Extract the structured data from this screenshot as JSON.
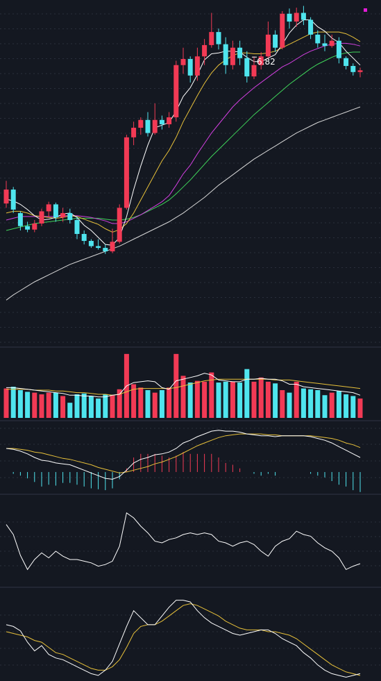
{
  "chart_data": [
    {
      "type": "candlestick",
      "panel": "price",
      "annotations": [
        {
          "text": "6.82",
          "at_index": 35
        }
      ],
      "colors": {
        "up": "#f23a55",
        "down": "#4fe5ee",
        "ma5": "#ffffff",
        "ma10": "#e8c13a",
        "ma20": "#d23fe0",
        "ma30": "#3fd45a",
        "ma60": "#d8d8d8",
        "marker": "#e21cd6"
      },
      "ylim": [
        3.0,
        6.9
      ],
      "candles": [
        [
          4.61,
          4.77,
          4.56,
          4.87
        ],
        [
          4.77,
          4.54,
          4.5,
          4.8
        ],
        [
          4.5,
          4.35,
          4.3,
          4.52
        ],
        [
          4.35,
          4.31,
          4.28,
          4.4
        ],
        [
          4.31,
          4.38,
          4.28,
          4.42
        ],
        [
          4.38,
          4.52,
          4.35,
          4.55
        ],
        [
          4.52,
          4.6,
          4.45,
          4.63
        ],
        [
          4.6,
          4.45,
          4.4,
          4.62
        ],
        [
          4.45,
          4.5,
          4.4,
          4.56
        ],
        [
          4.5,
          4.42,
          4.38,
          4.55
        ],
        [
          4.42,
          4.26,
          4.2,
          4.46
        ],
        [
          4.26,
          4.18,
          4.14,
          4.3
        ],
        [
          4.18,
          4.12,
          4.1,
          4.2
        ],
        [
          4.12,
          4.1,
          4.08,
          4.2
        ],
        [
          4.1,
          4.06,
          4.03,
          4.14
        ],
        [
          4.06,
          4.17,
          4.04,
          4.32
        ],
        [
          4.17,
          4.56,
          4.15,
          4.6
        ],
        [
          4.56,
          5.37,
          4.54,
          5.4
        ],
        [
          5.37,
          5.48,
          5.28,
          5.55
        ],
        [
          5.48,
          5.57,
          5.4,
          5.6
        ],
        [
          5.57,
          5.42,
          5.38,
          5.66
        ],
        [
          5.42,
          5.57,
          5.4,
          5.76
        ],
        [
          5.57,
          5.52,
          5.46,
          5.62
        ],
        [
          5.52,
          5.6,
          5.48,
          5.66
        ],
        [
          5.6,
          6.2,
          5.55,
          6.25
        ],
        [
          6.2,
          6.27,
          6.1,
          6.4
        ],
        [
          6.27,
          6.08,
          6.0,
          6.3
        ],
        [
          6.08,
          6.3,
          6.02,
          6.4
        ],
        [
          6.3,
          6.43,
          6.2,
          6.5
        ],
        [
          6.43,
          6.58,
          6.4,
          6.8
        ],
        [
          6.58,
          6.44,
          6.38,
          6.62
        ],
        [
          6.44,
          6.2,
          6.1,
          6.52
        ],
        [
          6.2,
          6.4,
          6.15,
          6.48
        ],
        [
          6.4,
          6.28,
          6.2,
          6.48
        ],
        [
          6.28,
          6.07,
          6.0,
          6.36
        ],
        [
          6.07,
          6.2,
          6.04,
          6.3
        ],
        [
          6.2,
          6.3,
          6.15,
          6.35
        ],
        [
          6.3,
          6.55,
          6.28,
          6.7
        ],
        [
          6.55,
          6.4,
          6.35,
          6.6
        ],
        [
          6.4,
          6.79,
          6.38,
          6.82
        ],
        [
          6.79,
          6.7,
          6.62,
          6.85
        ],
        [
          6.7,
          6.8,
          6.64,
          6.86
        ],
        [
          6.8,
          6.72,
          6.66,
          6.88
        ],
        [
          6.72,
          6.55,
          6.5,
          6.75
        ],
        [
          6.55,
          6.45,
          6.4,
          6.6
        ],
        [
          6.45,
          6.42,
          6.36,
          6.55
        ],
        [
          6.42,
          6.48,
          6.4,
          6.55
        ],
        [
          6.48,
          6.28,
          6.22,
          6.52
        ],
        [
          6.28,
          6.19,
          6.15,
          6.3
        ],
        [
          6.19,
          6.12,
          6.08,
          6.22
        ],
        [
          6.12,
          6.14,
          6.06,
          6.17
        ]
      ],
      "ma_lines": {
        "ma5": [
          4.66,
          4.64,
          4.6,
          4.54,
          4.47,
          4.42,
          4.43,
          4.45,
          4.49,
          4.5,
          4.45,
          4.36,
          4.3,
          4.22,
          4.14,
          4.13,
          4.22,
          4.46,
          4.77,
          5.04,
          5.28,
          5.48,
          5.51,
          5.54,
          5.67,
          5.84,
          5.94,
          6.09,
          6.26,
          6.33,
          6.34,
          6.36,
          6.36,
          6.35,
          6.29,
          6.24,
          6.24,
          6.28,
          6.32,
          6.44,
          6.57,
          6.66,
          6.72,
          6.72,
          6.64,
          6.59,
          6.51,
          6.46,
          6.36,
          6.28,
          6.2
        ],
        "ma10": [
          4.5,
          4.52,
          4.52,
          4.5,
          4.47,
          4.46,
          4.45,
          4.44,
          4.45,
          4.47,
          4.46,
          4.43,
          4.4,
          4.37,
          4.32,
          4.28,
          4.31,
          4.38,
          4.5,
          4.65,
          4.8,
          4.95,
          5.1,
          5.22,
          5.37,
          5.55,
          5.7,
          5.85,
          5.99,
          6.11,
          6.2,
          6.26,
          6.31,
          6.34,
          6.34,
          6.33,
          6.33,
          6.34,
          6.36,
          6.4,
          6.44,
          6.48,
          6.52,
          6.56,
          6.58,
          6.58,
          6.58,
          6.58,
          6.56,
          6.52,
          6.47
        ],
        "ma20": [
          4.42,
          4.44,
          4.46,
          4.46,
          4.46,
          4.46,
          4.46,
          4.46,
          4.47,
          4.47,
          4.47,
          4.46,
          4.45,
          4.43,
          4.41,
          4.38,
          4.38,
          4.4,
          4.44,
          4.48,
          4.53,
          4.58,
          4.63,
          4.7,
          4.82,
          4.95,
          5.05,
          5.18,
          5.3,
          5.42,
          5.52,
          5.62,
          5.72,
          5.8,
          5.87,
          5.94,
          6.0,
          6.06,
          6.12,
          6.18,
          6.22,
          6.27,
          6.32,
          6.36,
          6.39,
          6.42,
          6.44,
          6.45,
          6.45,
          6.44,
          6.42
        ],
        "ma30": [
          4.3,
          4.32,
          4.34,
          4.36,
          4.38,
          4.39,
          4.4,
          4.41,
          4.42,
          4.43,
          4.44,
          4.44,
          4.44,
          4.44,
          4.43,
          4.42,
          4.42,
          4.43,
          4.45,
          4.48,
          4.52,
          4.56,
          4.6,
          4.65,
          4.72,
          4.8,
          4.88,
          4.97,
          5.06,
          5.15,
          5.23,
          5.31,
          5.39,
          5.47,
          5.55,
          5.63,
          5.7,
          5.77,
          5.84,
          5.91,
          5.98,
          6.04,
          6.1,
          6.16,
          6.21,
          6.25,
          6.29,
          6.32,
          6.34,
          6.35,
          6.35
        ],
        "ma60": [
          3.5,
          3.56,
          3.61,
          3.66,
          3.71,
          3.75,
          3.79,
          3.83,
          3.87,
          3.91,
          3.94,
          3.97,
          4.0,
          4.03,
          4.06,
          4.09,
          4.12,
          4.16,
          4.2,
          4.24,
          4.28,
          4.32,
          4.36,
          4.4,
          4.45,
          4.5,
          4.56,
          4.62,
          4.68,
          4.75,
          4.82,
          4.88,
          4.94,
          5.0,
          5.06,
          5.12,
          5.17,
          5.22,
          5.27,
          5.32,
          5.37,
          5.42,
          5.46,
          5.5,
          5.54,
          5.57,
          5.6,
          5.63,
          5.66,
          5.69,
          5.72
        ]
      }
    },
    {
      "type": "bar",
      "panel": "volume",
      "ylim": [
        0,
        80
      ],
      "values": [
        35,
        37,
        33,
        31,
        30,
        28,
        30,
        30,
        26,
        18,
        28,
        29,
        26,
        23,
        28,
        27,
        34,
        76,
        40,
        36,
        33,
        30,
        33,
        36,
        76,
        50,
        42,
        44,
        43,
        54,
        42,
        43,
        43,
        42,
        58,
        43,
        48,
        43,
        41,
        33,
        30,
        43,
        35,
        34,
        33,
        27,
        30,
        32,
        28,
        26,
        23
      ],
      "ma5": [
        36,
        36,
        35,
        34,
        33,
        32,
        31,
        30,
        29,
        27,
        27,
        26,
        26,
        25,
        25,
        27,
        28,
        38,
        42,
        43,
        44,
        43,
        36,
        34,
        44,
        46,
        48,
        50,
        53,
        51,
        45,
        44,
        43,
        43,
        46,
        46,
        47,
        46,
        46,
        44,
        40,
        40,
        37,
        36,
        35,
        34,
        33,
        32,
        31,
        30,
        27
      ],
      "ma10": [
        34,
        34,
        34,
        34,
        33,
        33,
        33,
        32,
        32,
        31,
        30,
        30,
        29,
        28,
        28,
        27,
        28,
        31,
        34,
        35,
        35,
        35,
        35,
        35,
        36,
        38,
        40,
        42,
        44,
        45,
        46,
        46,
        46,
        46,
        46,
        46,
        46,
        46,
        45,
        45,
        45,
        44,
        43,
        42,
        41,
        40,
        39,
        38,
        37,
        36,
        35
      ]
    },
    {
      "type": "line",
      "panel": "macd",
      "ylim": [
        -0.23,
        0.52
      ],
      "dif": [
        0.26,
        0.25,
        0.23,
        0.2,
        0.16,
        0.13,
        0.12,
        0.1,
        0.09,
        0.08,
        0.05,
        0.02,
        -0.01,
        -0.04,
        -0.07,
        -0.08,
        -0.05,
        0.02,
        0.1,
        0.14,
        0.16,
        0.19,
        0.2,
        0.22,
        0.26,
        0.32,
        0.35,
        0.39,
        0.42,
        0.45,
        0.46,
        0.45,
        0.45,
        0.44,
        0.42,
        0.41,
        0.4,
        0.4,
        0.39,
        0.4,
        0.4,
        0.4,
        0.4,
        0.39,
        0.37,
        0.35,
        0.32,
        0.28,
        0.24,
        0.2,
        0.16
      ],
      "dea": [
        0.26,
        0.26,
        0.25,
        0.24,
        0.22,
        0.21,
        0.19,
        0.17,
        0.15,
        0.14,
        0.12,
        0.1,
        0.08,
        0.05,
        0.03,
        0.01,
        -0.01,
        0.0,
        0.02,
        0.04,
        0.06,
        0.09,
        0.11,
        0.14,
        0.17,
        0.21,
        0.25,
        0.29,
        0.32,
        0.35,
        0.38,
        0.4,
        0.41,
        0.42,
        0.42,
        0.42,
        0.42,
        0.41,
        0.41,
        0.4,
        0.4,
        0.4,
        0.4,
        0.4,
        0.39,
        0.38,
        0.37,
        0.35,
        0.32,
        0.3,
        0.27
      ],
      "macd": [
        0.0,
        -0.02,
        -0.04,
        -0.07,
        -0.11,
        -0.16,
        -0.14,
        -0.15,
        -0.12,
        -0.12,
        -0.14,
        -0.16,
        -0.18,
        -0.19,
        -0.2,
        -0.18,
        -0.08,
        0.04,
        0.16,
        0.2,
        0.2,
        0.2,
        0.18,
        0.16,
        0.18,
        0.22,
        0.2,
        0.2,
        0.2,
        0.2,
        0.16,
        0.1,
        0.08,
        0.04,
        0.0,
        -0.02,
        -0.04,
        -0.02,
        -0.04,
        0.0,
        0.0,
        0.0,
        0.0,
        -0.02,
        -0.04,
        -0.06,
        -0.1,
        -0.14,
        -0.16,
        -0.2,
        -0.22
      ]
    },
    {
      "type": "line",
      "panel": "oscillator",
      "ylim": [
        0,
        100
      ],
      "values": [
        72,
        60,
        35,
        18,
        30,
        38,
        32,
        40,
        34,
        30,
        30,
        28,
        26,
        22,
        24,
        28,
        46,
        86,
        80,
        70,
        62,
        52,
        50,
        54,
        56,
        60,
        62,
        60,
        62,
        60,
        52,
        50,
        46,
        50,
        52,
        48,
        40,
        34,
        46,
        52,
        55,
        64,
        60,
        58,
        50,
        44,
        40,
        32,
        18,
        22,
        25
      ]
    },
    {
      "type": "line",
      "panel": "oscillator2",
      "ylim": [
        0,
        100
      ],
      "k": [
        62,
        60,
        55,
        42,
        32,
        38,
        28,
        24,
        22,
        18,
        14,
        10,
        6,
        4,
        10,
        20,
        40,
        60,
        78,
        70,
        62,
        62,
        72,
        82,
        90,
        90,
        88,
        78,
        70,
        64,
        60,
        56,
        52,
        50,
        52,
        54,
        56,
        56,
        52,
        46,
        42,
        38,
        30,
        24,
        16,
        10,
        6,
        4,
        2,
        4,
        6
      ],
      "d": [
        54,
        52,
        50,
        48,
        44,
        42,
        36,
        30,
        28,
        24,
        20,
        16,
        12,
        10,
        10,
        14,
        22,
        36,
        52,
        60,
        62,
        62,
        66,
        72,
        78,
        84,
        86,
        84,
        80,
        76,
        72,
        66,
        62,
        58,
        56,
        56,
        56,
        54,
        54,
        52,
        50,
        46,
        40,
        34,
        28,
        22,
        16,
        12,
        8,
        6,
        4
      ]
    }
  ]
}
